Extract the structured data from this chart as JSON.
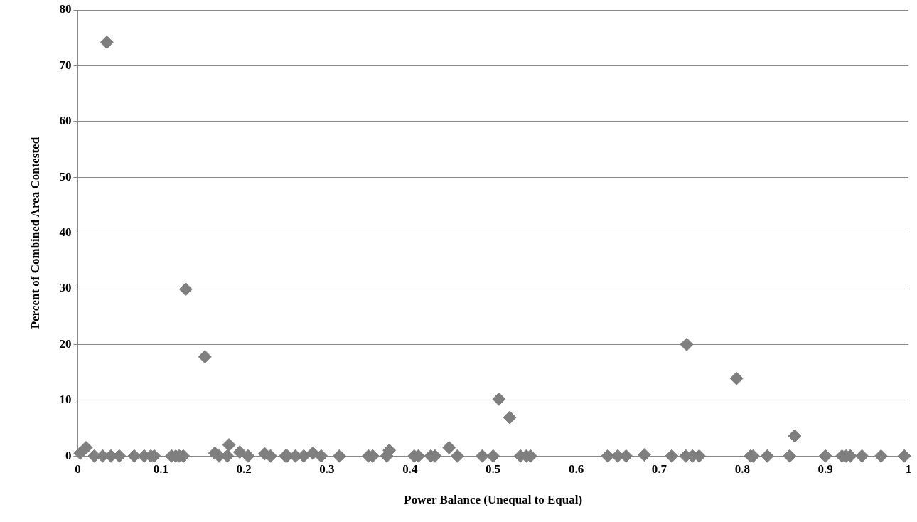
{
  "chart_data": {
    "type": "scatter",
    "xlabel": "Power Balance (Unequal to Equal)",
    "ylabel": "Percent of Combined Area Contested",
    "marker": "diamond",
    "grid": "y",
    "xlim": [
      0,
      1
    ],
    "xticks": [
      0,
      0.1,
      0.2,
      0.3,
      0.4,
      0.5,
      0.6,
      0.7,
      0.8,
      0.9,
      1
    ],
    "ylim": [
      0,
      80
    ],
    "yticks": [
      0,
      10,
      20,
      30,
      40,
      50,
      60,
      70,
      80
    ],
    "series": [
      {
        "color": "#7f7f7f",
        "x": [
          0.003,
          0.01,
          0.02,
          0.03,
          0.04,
          0.05,
          0.068,
          0.08,
          0.088,
          0.092,
          0.113,
          0.118,
          0.122,
          0.127,
          0.165,
          0.17,
          0.18,
          0.182,
          0.195,
          0.205,
          0.225,
          0.232,
          0.25,
          0.252,
          0.262,
          0.272,
          0.283,
          0.293,
          0.315,
          0.35,
          0.355,
          0.372,
          0.375,
          0.405,
          0.41,
          0.425,
          0.43,
          0.447,
          0.457,
          0.487,
          0.5,
          0.533,
          0.54,
          0.545,
          0.638,
          0.65,
          0.66,
          0.682,
          0.715,
          0.732,
          0.74,
          0.748,
          0.81,
          0.813,
          0.83,
          0.857,
          0.863,
          0.9,
          0.92,
          0.925,
          0.93,
          0.944,
          0.967,
          0.995,
          0.035,
          0.13,
          0.153,
          0.507,
          0.52,
          0.733,
          0.793
        ],
        "values": [
          0.5,
          1.5,
          0,
          0,
          0,
          0,
          0,
          0,
          0,
          0,
          0,
          0,
          0,
          0,
          0.5,
          0,
          0,
          2,
          0.7,
          0,
          0.4,
          0,
          0,
          0,
          0,
          0,
          0.5,
          0,
          0,
          0,
          0,
          0,
          1,
          0,
          0,
          0,
          0,
          1.5,
          0,
          0,
          0,
          0,
          0,
          0,
          0,
          0,
          0,
          0.2,
          0,
          0,
          0,
          0,
          0,
          0,
          0,
          0,
          3.6,
          0,
          0,
          0,
          0,
          0,
          0,
          0,
          74.2,
          29.9,
          17.8,
          10.2,
          6.9,
          20,
          13.9
        ]
      }
    ]
  }
}
